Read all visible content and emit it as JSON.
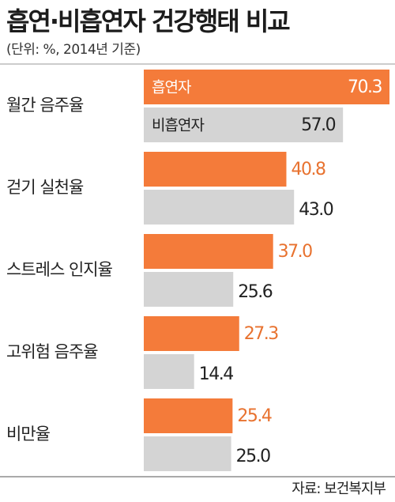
{
  "title": "흡연·비흡연자 건강행태 비교",
  "subtitle": "(단위: %, 2014년 기준)",
  "source": "자료: 보건복지부",
  "colors": {
    "smoker": "#f47b3a",
    "nonsmoker": "#d4d4d4",
    "smoker_text": "#e8722f",
    "nonsmoker_text": "#222222"
  },
  "chart_data": {
    "type": "bar",
    "orientation": "horizontal",
    "title": "흡연·비흡연자 건강행태 비교",
    "subtitle": "(단위: %, 2014년 기준)",
    "categories": [
      "월간 음주율",
      "걷기 실천율",
      "스트레스 인지율",
      "고위험 음주율",
      "비만율"
    ],
    "series": [
      {
        "name": "흡연자",
        "values": [
          70.3,
          40.8,
          37.0,
          27.3,
          25.4
        ],
        "color": "#f47b3a"
      },
      {
        "name": "비흡연자",
        "values": [
          57.0,
          43.0,
          25.6,
          14.4,
          25.0
        ],
        "color": "#d4d4d4"
      }
    ],
    "value_labels": {
      "smoker": [
        "70.3",
        "40.8",
        "37.0",
        "27.3",
        "25.4"
      ],
      "nonsmoker": [
        "57.0",
        "43.0",
        "25.6",
        "14.4",
        "25.0"
      ]
    },
    "legend": "inside-first-bars",
    "grid": false
  }
}
